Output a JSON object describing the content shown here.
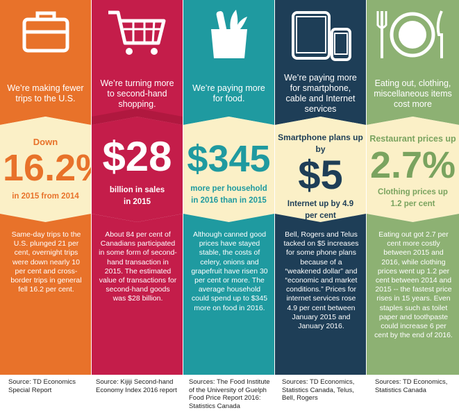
{
  "colors": {
    "orange": "#e8722a",
    "crimson": "#c41d4a",
    "teal": "#1f9aa0",
    "navy": "#1e3e57",
    "sage": "#8db173",
    "cream": "#fbf0c7"
  },
  "columns": [
    {
      "icon": "suitcase-icon",
      "headline": "We’re making fewer trips to the U.S.",
      "pre": "Down",
      "big": "16.2%",
      "sub": "in 2015 from 2014",
      "body": "Same-day trips to the U.S. plunged 21 per cent, overnight trips were down nearly 10 per cent and cross-border trips in general fell 16.2 per cent.",
      "source": "Source: TD Economics Special Report"
    },
    {
      "icon": "shopping-cart-icon",
      "headline": "We’re turning more to second-hand shopping.",
      "big": "$28",
      "sub": "billion in sales in 2015",
      "body": "About 84 per cent of Canadians participated in some form of second-hand transaction in 2015. The estimated value of transactions for second-hand goods was $28 billion.",
      "source": "Source: Kijiji Second-hand Economy Index 2016 report"
    },
    {
      "icon": "grocery-bag-icon",
      "headline": "We’re paying more for food.",
      "big": "$345",
      "sub": "more per household in 2016 than in 2015",
      "body": "Although canned good prices have stayed stable, the costs of celery, onions and grapefruit have risen 30 per cent or more. The average household could spend up to $345 more on food in 2016.",
      "source": "Sources: The Food Institute of the University of Guelph Food Price Report 2016: Statistics Canada"
    },
    {
      "icon": "tablet-phone-icon",
      "headline": "We’re paying more for smartphone, cable and Internet services",
      "pre": "Smartphone plans up by",
      "big": "$5",
      "sub": "Internet up by 4.9 per cent",
      "body": "Bell, Rogers and Telus tacked on $5 increases for some phone plans because of a “weakened dollar” and “economic and market conditions.” Prices for internet services rose 4.9 per cent between January 2015 and January 2016.",
      "source": "Sources: TD Economics, Statistics Canada, Telus, Bell, Rogers"
    },
    {
      "icon": "dining-plate-icon",
      "headline": "Eating out, clothing, miscellaneous items cost more",
      "pre": "Restaurant prices up",
      "big": "2.7%",
      "sub": "Clothing prices up 1.2 per cent",
      "body": "Eating out got 2.7 per cent more costly between 2015 and 2016, while clothing prices went up 1.2 per cent between 2014 and 2015 -- the fastest price rises in 15 years. Even staples such as toilet paper and toothpaste could increase 6 per cent by the end of 2016.",
      "source": "Sources: TD Economics, Statistics Canada"
    }
  ]
}
